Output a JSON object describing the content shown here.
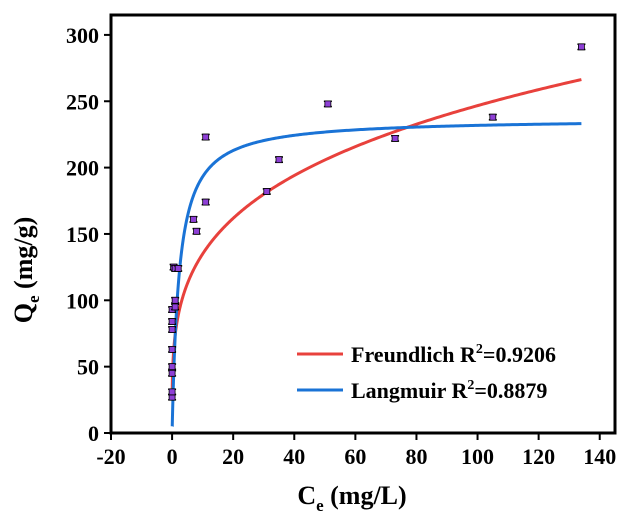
{
  "chart_data": {
    "type": "scatter",
    "xlabel": {
      "main": "C",
      "sub": "e",
      "rest": " (mg/L)"
    },
    "ylabel": {
      "main": "Q",
      "sub": "e",
      "rest": " (mg/g)"
    },
    "xlim": [
      -20,
      145
    ],
    "ylim": [
      0,
      315
    ],
    "xticks": [
      -20,
      0,
      20,
      40,
      60,
      80,
      100,
      120,
      140
    ],
    "yticks": [
      0,
      50,
      100,
      150,
      200,
      250,
      300
    ],
    "grid": false,
    "legend_position": "bottom-right",
    "points": {
      "color": "#8e3fd6",
      "error_bar_color": "#000000",
      "x": [
        0,
        0,
        0,
        0,
        0,
        0,
        0,
        0,
        0.5,
        1,
        1,
        1,
        2,
        7,
        8,
        11,
        11,
        31,
        35,
        51,
        73,
        105,
        134
      ],
      "y": [
        27,
        31,
        45,
        50,
        63,
        78,
        84,
        93,
        125,
        95,
        100,
        124,
        124,
        161,
        152,
        174,
        223,
        182,
        206,
        248,
        222,
        238,
        291
      ],
      "error": [
        2,
        2,
        2,
        2,
        2,
        2,
        2,
        2,
        2,
        2,
        2,
        2,
        2,
        2,
        2,
        2,
        2,
        2,
        2,
        2,
        2,
        2,
        2
      ]
    },
    "series": [
      {
        "name": "Freundlich",
        "r2_label": "R",
        "r2_sup": "2",
        "r2_value": "=0.9206",
        "color": "#e8413c",
        "model": "freundlich",
        "params": {
          "K": 73.8,
          "n": 3.816
        },
        "x_range": [
          0.05,
          134
        ]
      },
      {
        "name": "Langmuir",
        "r2_label": "R",
        "r2_sup": "2",
        "r2_value": "=0.8879",
        "color": "#1a73d6",
        "model": "langmuir",
        "params": {
          "qm": 237.1,
          "KL": 0.4392
        },
        "x_range": [
          0.05,
          134
        ]
      }
    ]
  }
}
